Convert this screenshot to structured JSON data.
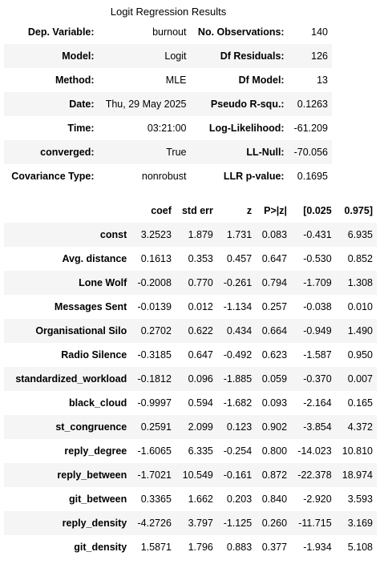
{
  "title": "Logit Regression Results",
  "summary": [
    [
      "Dep. Variable:",
      "burnout",
      "No. Observations:",
      "140"
    ],
    [
      "Model:",
      "Logit",
      "Df Residuals:",
      "126"
    ],
    [
      "Method:",
      "MLE",
      "Df Model:",
      "13"
    ],
    [
      "Date:",
      "Thu, 29 May 2025",
      "Pseudo R-squ.:",
      "0.1263"
    ],
    [
      "Time:",
      "03:21:00",
      "Log-Likelihood:",
      "-61.209"
    ],
    [
      "converged:",
      "True",
      "LL-Null:",
      "-70.056"
    ],
    [
      "Covariance Type:",
      "nonrobust",
      "LLR p-value:",
      "0.1695"
    ]
  ],
  "coef_headers": [
    "",
    "coef",
    "std err",
    "z",
    "P>|z|",
    "[0.025",
    "0.975]"
  ],
  "coef_rows": [
    [
      "const",
      "3.2523",
      "1.879",
      "1.731",
      "0.083",
      "-0.431",
      "6.935"
    ],
    [
      "Avg. distance",
      "0.1613",
      "0.353",
      "0.457",
      "0.647",
      "-0.530",
      "0.852"
    ],
    [
      "Lone Wolf",
      "-0.2008",
      "0.770",
      "-0.261",
      "0.794",
      "-1.709",
      "1.308"
    ],
    [
      "Messages Sent",
      "-0.0139",
      "0.012",
      "-1.134",
      "0.257",
      "-0.038",
      "0.010"
    ],
    [
      "Organisational Silo",
      "0.2702",
      "0.622",
      "0.434",
      "0.664",
      "-0.949",
      "1.490"
    ],
    [
      "Radio Silence",
      "-0.3185",
      "0.647",
      "-0.492",
      "0.623",
      "-1.587",
      "0.950"
    ],
    [
      "standardized_workload",
      "-0.1812",
      "0.096",
      "-1.885",
      "0.059",
      "-0.370",
      "0.007"
    ],
    [
      "black_cloud",
      "-0.9997",
      "0.594",
      "-1.682",
      "0.093",
      "-2.164",
      "0.165"
    ],
    [
      "st_congruence",
      "0.2591",
      "2.099",
      "0.123",
      "0.902",
      "-3.854",
      "4.372"
    ],
    [
      "reply_degree",
      "-1.6065",
      "6.335",
      "-0.254",
      "0.800",
      "-14.023",
      "10.810"
    ],
    [
      "reply_between",
      "-1.7021",
      "10.549",
      "-0.161",
      "0.872",
      "-22.378",
      "18.974"
    ],
    [
      "git_between",
      "0.3365",
      "1.662",
      "0.203",
      "0.840",
      "-2.920",
      "3.593"
    ],
    [
      "reply_density",
      "-4.2726",
      "3.797",
      "-1.125",
      "0.260",
      "-11.715",
      "3.169"
    ],
    [
      "git_density",
      "1.5871",
      "1.796",
      "0.883",
      "0.377",
      "-1.934",
      "5.108"
    ]
  ]
}
